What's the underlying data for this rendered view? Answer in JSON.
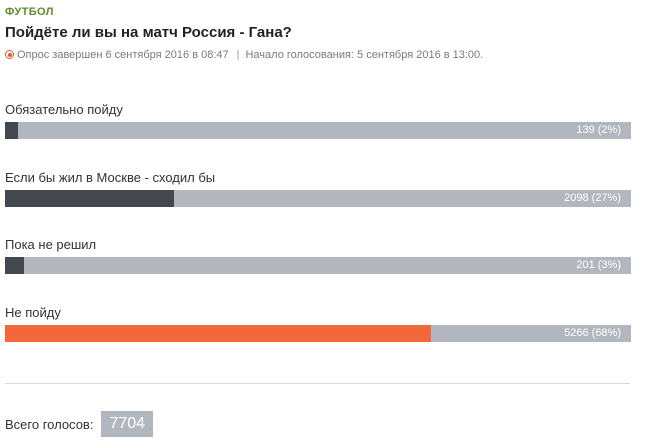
{
  "poll": {
    "category": "ФУТБОЛ",
    "title": "Пойдёте ли вы на матч Россия - Гана?",
    "status_ended": "Опрос завершен 6 сентября 2016 в 08:47",
    "status_separator": "|",
    "status_started": "Начало голосования: 5 сентября 2016 в 13:00.",
    "options": [
      {
        "label": "Обязательно пойду",
        "count": 139,
        "percent": 2,
        "value_text": "139 (2%)",
        "leader": false
      },
      {
        "label": "Если бы жил в Москве - сходил бы",
        "count": 2098,
        "percent": 27,
        "value_text": "2098 (27%)",
        "leader": false
      },
      {
        "label": "Пока не решил",
        "count": 201,
        "percent": 3,
        "value_text": "201 (3%)",
        "leader": false
      },
      {
        "label": "Не пойду",
        "count": 5266,
        "percent": 68,
        "value_text": "5266 (68%)",
        "leader": true
      }
    ],
    "total_label": "Всего голосов:",
    "total_count": "7704"
  },
  "colors": {
    "category": "#5d8b2a",
    "bar_track": "#b2b7bf",
    "bar_fill": "#434850",
    "bar_leader": "#f2683a",
    "status_icon": "#e25a2c"
  },
  "icons": {
    "status": "status-dot-icon"
  }
}
